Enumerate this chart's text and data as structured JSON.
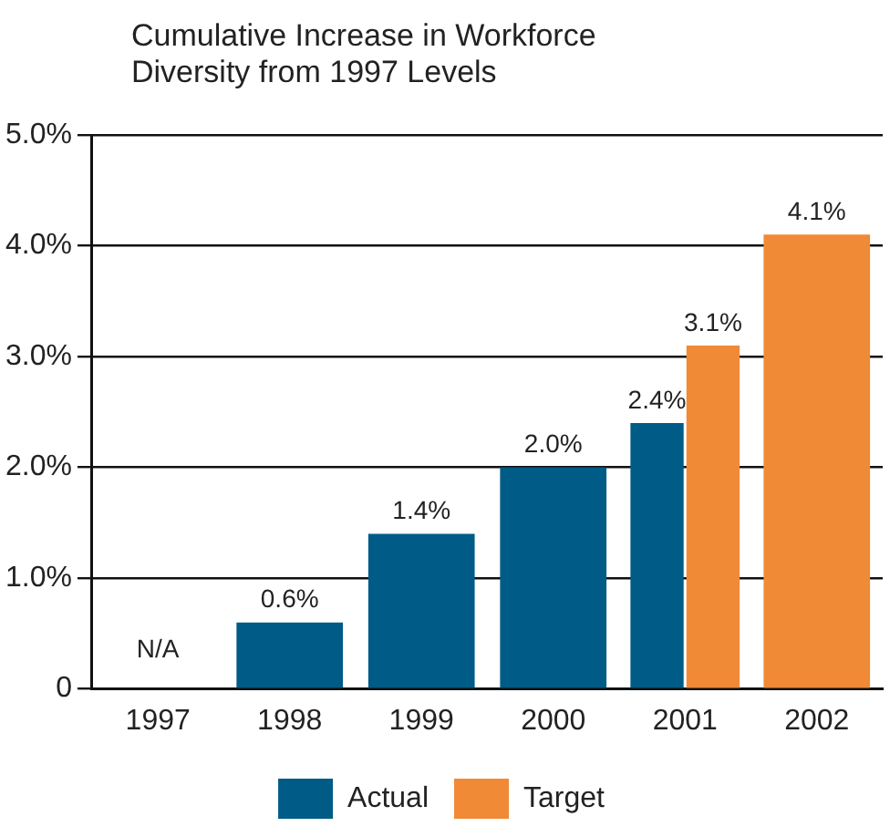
{
  "chart_data": {
    "type": "bar",
    "title": "Cumulative Increase in Workforce Diversity from 1997 Levels",
    "categories": [
      "1997",
      "1998",
      "1999",
      "2000",
      "2001",
      "2002"
    ],
    "series": [
      {
        "name": "Actual",
        "color": "#005b86",
        "values": [
          null,
          0.6,
          1.4,
          2.0,
          2.4,
          null
        ],
        "value_labels": [
          "N/A",
          "0.6%",
          "1.4%",
          "2.0%",
          "2.4%",
          null
        ]
      },
      {
        "name": "Target",
        "color": "#f08a36",
        "values": [
          null,
          null,
          null,
          null,
          3.1,
          4.1
        ],
        "value_labels": [
          null,
          null,
          null,
          null,
          "3.1%",
          "4.1%"
        ]
      }
    ],
    "ylim": [
      0,
      5
    ],
    "yticks": [
      {
        "value": 0,
        "label": "0"
      },
      {
        "value": 1,
        "label": "1.0%"
      },
      {
        "value": 2,
        "label": "2.0%"
      },
      {
        "value": 3,
        "label": "3.0%"
      },
      {
        "value": 4,
        "label": "4.0%"
      },
      {
        "value": 5,
        "label": "5.0%"
      }
    ],
    "grid": "y",
    "legend": "bottom"
  }
}
